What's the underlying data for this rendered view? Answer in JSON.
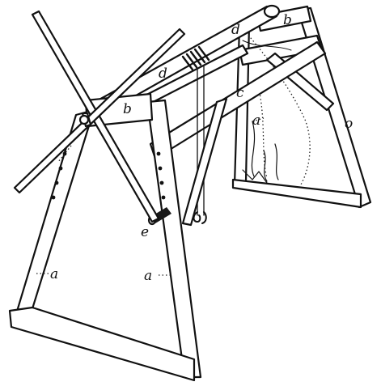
{
  "figure": {
    "labels": {
      "a_left": "a",
      "a_center": "a",
      "a_right": "a",
      "b_left": "b",
      "b_right": "b",
      "c": "c",
      "d_left": "d",
      "d_right": "d",
      "e": "e",
      "o": "o"
    },
    "colors": {
      "ink": "#111111",
      "paper": "#ffffff"
    }
  }
}
